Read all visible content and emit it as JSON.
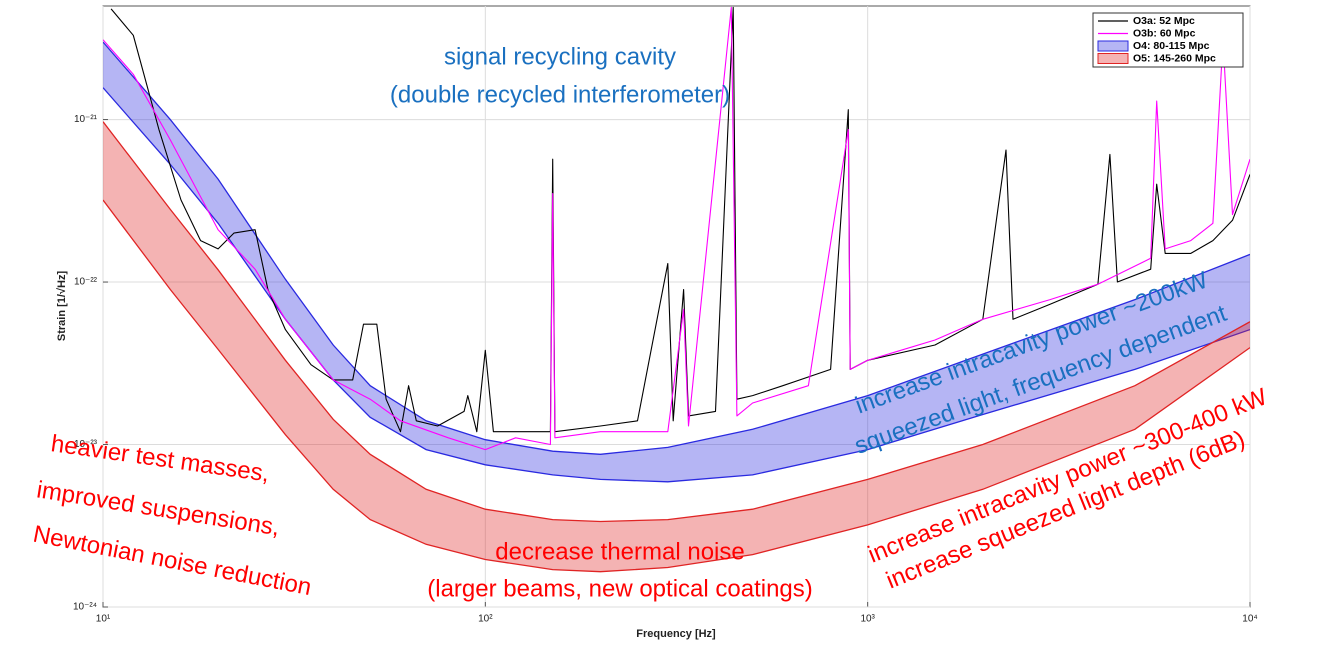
{
  "chart_data": {
    "type": "line",
    "xlabel": "Frequency [Hz]",
    "ylabel": "Strain [1/√Hz]",
    "xlog": true,
    "ylog": true,
    "grid": true,
    "legend": "upper right",
    "xlim": [
      10,
      10000
    ],
    "ylim": [
      1e-24,
      5e-21
    ],
    "xticks": [
      {
        "value": 10,
        "label": "10¹"
      },
      {
        "value": 100,
        "label": "10²"
      },
      {
        "value": 1000,
        "label": "10³"
      },
      {
        "value": 10000,
        "label": "10⁴"
      }
    ],
    "yticks": [
      {
        "value": 1e-24,
        "label": "10⁻²⁴"
      },
      {
        "value": 1e-23,
        "label": "10⁻²³"
      },
      {
        "value": 1e-22,
        "label": "10⁻²²"
      },
      {
        "value": 1e-21,
        "label": "10⁻²¹"
      }
    ],
    "series": [
      {
        "name": "O3a: 52 Mpc",
        "color": "#000000",
        "x": [
          10.5,
          12,
          14,
          16,
          18,
          20,
          22,
          25,
          27,
          30,
          35,
          40,
          45,
          48,
          52,
          55,
          60,
          63,
          66,
          75,
          88,
          90,
          95,
          100,
          105,
          130,
          148,
          150,
          152,
          200,
          250,
          300,
          310,
          330,
          340,
          400,
          445,
          455,
          500,
          600,
          800,
          890,
          900,
          1000,
          1500,
          2000,
          2300,
          2400,
          3000,
          4000,
          4300,
          4500,
          5500,
          5700,
          6000,
          7000,
          8000,
          9000,
          10000
        ],
        "values": [
          4.8e-21,
          3.3e-21,
          8.7e-22,
          3.2e-22,
          1.8e-22,
          1.6e-22,
          2e-22,
          2.1e-22,
          9e-23,
          5.1e-23,
          3.1e-23,
          2.5e-23,
          2.5e-23,
          5.5e-23,
          5.5e-23,
          1.9e-23,
          1.2e-23,
          2.3e-23,
          1.4e-23,
          1.3e-23,
          1.6e-23,
          2e-23,
          1.2e-23,
          3.8e-23,
          1.2e-23,
          1.2e-23,
          1.2e-23,
          5.7e-22,
          1.2e-23,
          1.3e-23,
          1.4e-23,
          1.3e-22,
          1.4e-23,
          9e-23,
          1.5e-23,
          1.6e-23,
          4.9e-21,
          1.9e-23,
          2e-23,
          2.3e-23,
          2.9e-23,
          1.15e-21,
          2.9e-23,
          3.3e-23,
          4.1e-23,
          5.9e-23,
          6.5e-22,
          5.9e-23,
          7.3e-23,
          9.7e-23,
          6.1e-22,
          1e-22,
          1.2e-22,
          4e-22,
          1.5e-22,
          1.5e-22,
          1.8e-22,
          2.4e-22,
          4.6e-22
        ]
      },
      {
        "name": "O3b: 60 Mpc",
        "color": "#ff00ff",
        "x": [
          10,
          12,
          15,
          20,
          25,
          30,
          40,
          50,
          60,
          80,
          100,
          120,
          148,
          150,
          152,
          200,
          300,
          330,
          340,
          440,
          455,
          500,
          700,
          890,
          900,
          1000,
          1500,
          2000,
          3000,
          4000,
          5500,
          5700,
          6000,
          7000,
          8000,
          8500,
          9000,
          10000
        ],
        "values": [
          3.1e-21,
          1.9e-21,
          7.5e-22,
          2.1e-22,
          1.2e-22,
          5.9e-23,
          2.5e-23,
          1.9e-23,
          1.4e-23,
          1.1e-23,
          9.3e-24,
          1.1e-23,
          1e-23,
          3.5e-22,
          1.1e-23,
          1.2e-23,
          1.2e-23,
          6.8e-23,
          1.3e-23,
          4.9e-21,
          1.5e-23,
          1.8e-23,
          2.3e-23,
          8.7e-22,
          2.9e-23,
          3.3e-23,
          4.4e-23,
          5.9e-23,
          7.8e-23,
          9.7e-23,
          1.4e-22,
          1.3e-21,
          1.6e-22,
          1.8e-22,
          2.3e-22,
          3.1e-21,
          2.6e-22,
          5.7e-22
        ]
      },
      {
        "name": "O4: 80-115 Mpc",
        "color": "#2a2ae0",
        "x": [
          10,
          15,
          20,
          30,
          40,
          50,
          70,
          100,
          150,
          200,
          300,
          500,
          1000,
          2000,
          5000,
          10000
        ],
        "upper": [
          3e-21,
          1e-21,
          4.3e-22,
          1.04e-22,
          4.1e-23,
          2.3e-23,
          1.4e-23,
          1.07e-23,
          9.1e-24,
          8.7e-24,
          9.6e-24,
          1.24e-23,
          2e-23,
          3.6e-23,
          7.8e-23,
          1.48e-22
        ],
        "lower": [
          1.57e-21,
          5.3e-22,
          2.3e-22,
          5.9e-23,
          2.5e-23,
          1.47e-23,
          9.3e-24,
          7.5e-24,
          6.5e-24,
          6.1e-24,
          5.9e-24,
          6.5e-24,
          9.3e-24,
          1.53e-23,
          2.9e-23,
          5.1e-23
        ]
      },
      {
        "name": "O5: 145-260 Mpc",
        "color": "#e02424",
        "x": [
          10,
          15,
          20,
          30,
          40,
          50,
          70,
          100,
          150,
          200,
          300,
          500,
          1000,
          2000,
          5000,
          10000
        ],
        "upper": [
          9.7e-22,
          2.8e-22,
          1.19e-22,
          3.3e-23,
          1.43e-23,
          8.7e-24,
          5.3e-24,
          4e-24,
          3.45e-24,
          3.36e-24,
          3.45e-24,
          4e-24,
          6.1e-24,
          1e-23,
          2.3e-23,
          5.7e-23
        ],
        "lower": [
          3.2e-22,
          9e-23,
          3.85e-23,
          1.15e-23,
          5.3e-24,
          3.45e-24,
          2.43e-24,
          1.96e-24,
          1.7e-24,
          1.65e-24,
          1.75e-24,
          2.1e-24,
          3.2e-24,
          5.3e-24,
          1.24e-23,
          3.95e-23
        ]
      }
    ],
    "annotations": [
      {
        "text": "signal recycling cavity",
        "color": "#1a70c0"
      },
      {
        "text": "(double recycled interferometer)",
        "color": "#1a70c0"
      },
      {
        "text": "increase intracavity power ~200kW",
        "color": "#1a70c0"
      },
      {
        "text": "squeezed light, frequency dependent",
        "color": "#1a70c0"
      },
      {
        "text": "increase intracavity power ~300-400 kW",
        "color": "#ff0000"
      },
      {
        "text": "increase squeezed light depth (6dB)",
        "color": "#ff0000"
      },
      {
        "text": "heavier test masses,",
        "color": "#ff0000"
      },
      {
        "text": "improved suspensions,",
        "color": "#ff0000"
      },
      {
        "text": "Newtonian noise reduction",
        "color": "#ff0000"
      },
      {
        "text": "decrease thermal noise",
        "color": "#ff0000"
      },
      {
        "text": "(larger beams, new optical coatings)",
        "color": "#ff0000"
      }
    ]
  }
}
